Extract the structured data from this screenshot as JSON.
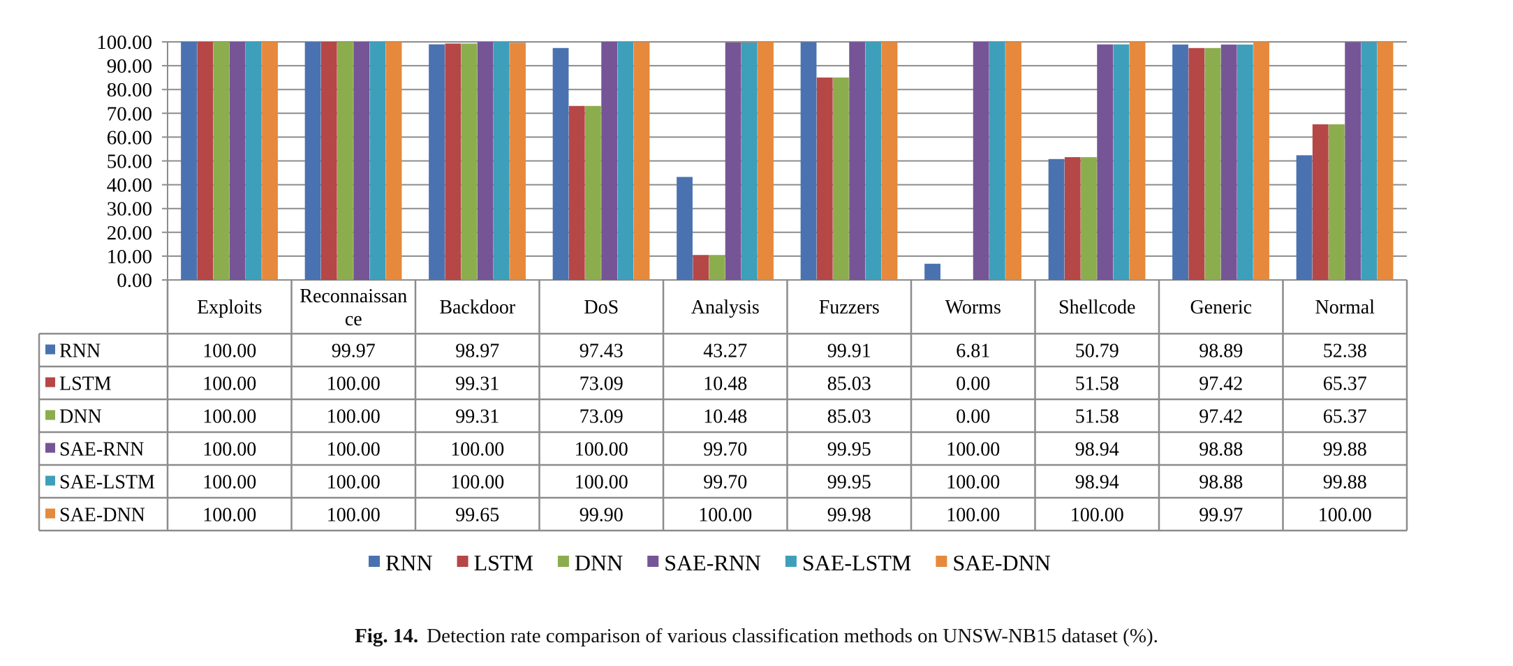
{
  "caption": {
    "label": "Fig. 14.",
    "text": "Detection rate comparison of various classification methods on UNSW-NB15 dataset (%)."
  },
  "chart_data": {
    "type": "bar",
    "categories": [
      "Exploits",
      "Reconnaissance",
      "Backdoor",
      "DoS",
      "Analysis",
      "Fuzzers",
      "Worms",
      "Shellcode",
      "Generic",
      "Normal"
    ],
    "category_display_lines": [
      [
        "Exploits"
      ],
      [
        "Reconnaissan",
        "ce"
      ],
      [
        "Backdoor"
      ],
      [
        "DoS"
      ],
      [
        "Analysis"
      ],
      [
        "Fuzzers"
      ],
      [
        "Worms"
      ],
      [
        "Shellcode"
      ],
      [
        "Generic"
      ],
      [
        "Normal"
      ]
    ],
    "series": [
      {
        "name": "RNN",
        "color": "#4a72b0",
        "values": [
          100.0,
          99.97,
          98.97,
          97.43,
          43.27,
          99.91,
          6.81,
          50.79,
          98.89,
          52.38
        ],
        "labels": [
          "100.00",
          "99.97",
          "98.97",
          "97.43",
          "43.27",
          "99.91",
          "6.81",
          "50.79",
          "98.89",
          "52.38"
        ]
      },
      {
        "name": "LSTM",
        "color": "#b54746",
        "values": [
          100.0,
          100.0,
          99.31,
          73.09,
          10.48,
          85.03,
          0.0,
          51.58,
          97.42,
          65.37
        ],
        "labels": [
          "100.00",
          "100.00",
          "99.31",
          "73.09",
          "10.48",
          "85.03",
          "0.00",
          "51.58",
          "97.42",
          "65.37"
        ]
      },
      {
        "name": "DNN",
        "color": "#8cad4e",
        "values": [
          100.0,
          100.0,
          99.31,
          73.09,
          10.48,
          85.03,
          0.0,
          51.58,
          97.42,
          65.37
        ],
        "labels": [
          "100.00",
          "100.00",
          "99.31",
          "73.09",
          "10.48",
          "85.03",
          "0.00",
          "51.58",
          "97.42",
          "65.37"
        ]
      },
      {
        "name": "SAE-RNN",
        "color": "#755596",
        "values": [
          100.0,
          100.0,
          100.0,
          100.0,
          99.7,
          99.95,
          100.0,
          98.94,
          98.88,
          99.88
        ],
        "labels": [
          "100.00",
          "100.00",
          "100.00",
          "100.00",
          "99.70",
          "99.95",
          "100.00",
          "98.94",
          "98.88",
          "99.88"
        ]
      },
      {
        "name": "SAE-LSTM",
        "color": "#3e9fbb",
        "values": [
          100.0,
          100.0,
          100.0,
          100.0,
          99.7,
          99.95,
          100.0,
          98.94,
          98.88,
          99.88
        ],
        "labels": [
          "100.00",
          "100.00",
          "100.00",
          "100.00",
          "99.70",
          "99.95",
          "100.00",
          "98.94",
          "98.88",
          "99.88"
        ]
      },
      {
        "name": "SAE-DNN",
        "color": "#e6893c",
        "values": [
          100.0,
          100.0,
          99.65,
          99.9,
          100.0,
          99.98,
          100.0,
          100.0,
          99.97,
          100.0
        ],
        "labels": [
          "100.00",
          "100.00",
          "99.65",
          "99.90",
          "100.00",
          "99.98",
          "100.00",
          "100.00",
          "99.97",
          "100.00"
        ]
      }
    ],
    "y_ticks": [
      "0.00",
      "10.00",
      "20.00",
      "30.00",
      "40.00",
      "50.00",
      "60.00",
      "70.00",
      "80.00",
      "90.00",
      "100.00"
    ],
    "ylim": [
      0,
      100
    ],
    "grid": true,
    "legend_position": "bottom-center",
    "data_table": true
  }
}
